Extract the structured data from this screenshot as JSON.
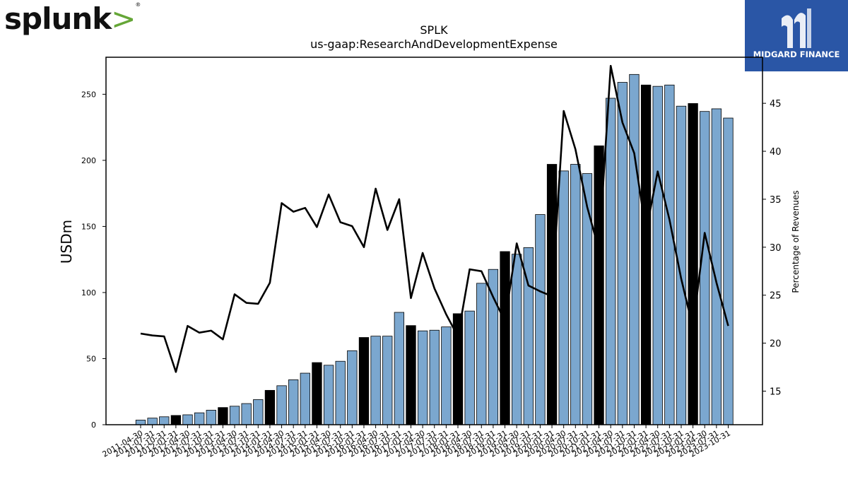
{
  "logos": {
    "left": "splunk",
    "left_suffix": ">",
    "right": "MIDGARD FINANCE"
  },
  "chart_data": {
    "type": "bar",
    "title": "SPLK",
    "subtitle": "us-gaap:ResearchAndDevelopmentExpense",
    "ylabel": "USDm",
    "y2label": "Percentage of Revenues",
    "ylim": [
      0,
      278
    ],
    "y2lim": [
      11.5,
      49.8
    ],
    "yticks": [
      0,
      50,
      100,
      150,
      200,
      250
    ],
    "y2ticks": [
      15,
      20,
      25,
      30,
      35,
      40,
      45
    ],
    "bar_color": "#7ba7cf",
    "highlight_color": "#000000",
    "line_color": "#000000",
    "categories": [
      "2011-04-30",
      "2011-07-31",
      "2011-10-31",
      "2012-01-31",
      "2012-04-30",
      "2012-07-31",
      "2012-10-31",
      "2013-01-31",
      "2013-04-30",
      "2013-07-31",
      "2013-10-31",
      "2014-01-31",
      "2014-04-30",
      "2014-07-31",
      "2014-10-31",
      "2015-01-31",
      "2015-04-30",
      "2015-07-31",
      "2015-10-31",
      "2016-01-31",
      "2016-04-30",
      "2016-07-31",
      "2016-10-31",
      "2017-01-31",
      "2017-04-30",
      "2017-07-31",
      "2017-10-31",
      "2018-01-31",
      "2018-04-30",
      "2018-07-31",
      "2018-10-31",
      "2019-01-31",
      "2019-04-30",
      "2019-07-31",
      "2019-10-31",
      "2020-01-31",
      "2020-04-30",
      "2020-07-31",
      "2020-10-31",
      "2021-01-31",
      "2021-04-30",
      "2021-07-31",
      "2021-10-31",
      "2022-01-31",
      "2022-04-30",
      "2022-07-31",
      "2022-10-31",
      "2023-01-31",
      "2023-04-30",
      "2023-07-31",
      "2023-10-31"
    ],
    "series": [
      {
        "kind": "bar",
        "axis": "left",
        "values": [
          3.5,
          5,
          6,
          7,
          7.5,
          9,
          11,
          13,
          14,
          16,
          19,
          26,
          29.5,
          34,
          39,
          47,
          45,
          48,
          56,
          66,
          67,
          67,
          85,
          75,
          71,
          71.5,
          74,
          84,
          86,
          107,
          117.5,
          131,
          129,
          134,
          159,
          197,
          192,
          197,
          190,
          211,
          247,
          259,
          265,
          257,
          256,
          257,
          241,
          243,
          237,
          239,
          232
        ],
        "highlighted": [
          3,
          7,
          11,
          15,
          19,
          23,
          27,
          31,
          35,
          39,
          43,
          47
        ]
      },
      {
        "kind": "line",
        "axis": "right",
        "values": [
          21,
          20.8,
          20.7,
          17,
          21.8,
          21.1,
          21.3,
          20.4,
          25.1,
          24.2,
          24.1,
          26.3,
          34.6,
          33.7,
          34.1,
          32.1,
          35.5,
          32.6,
          32.2,
          30,
          36.1,
          31.8,
          35,
          24.7,
          29.4,
          25.7,
          23,
          20.7,
          27.7,
          27.5,
          24.8,
          22.3,
          30.4,
          26,
          25.4,
          24.9,
          44.2,
          40.2,
          34.2,
          29.7,
          48.9,
          43,
          39.8,
          31.6,
          37.9,
          32.9,
          26.7,
          21.6,
          31.5,
          26.3,
          21.8
        ]
      }
    ],
    "grid": false,
    "legend": "none"
  }
}
